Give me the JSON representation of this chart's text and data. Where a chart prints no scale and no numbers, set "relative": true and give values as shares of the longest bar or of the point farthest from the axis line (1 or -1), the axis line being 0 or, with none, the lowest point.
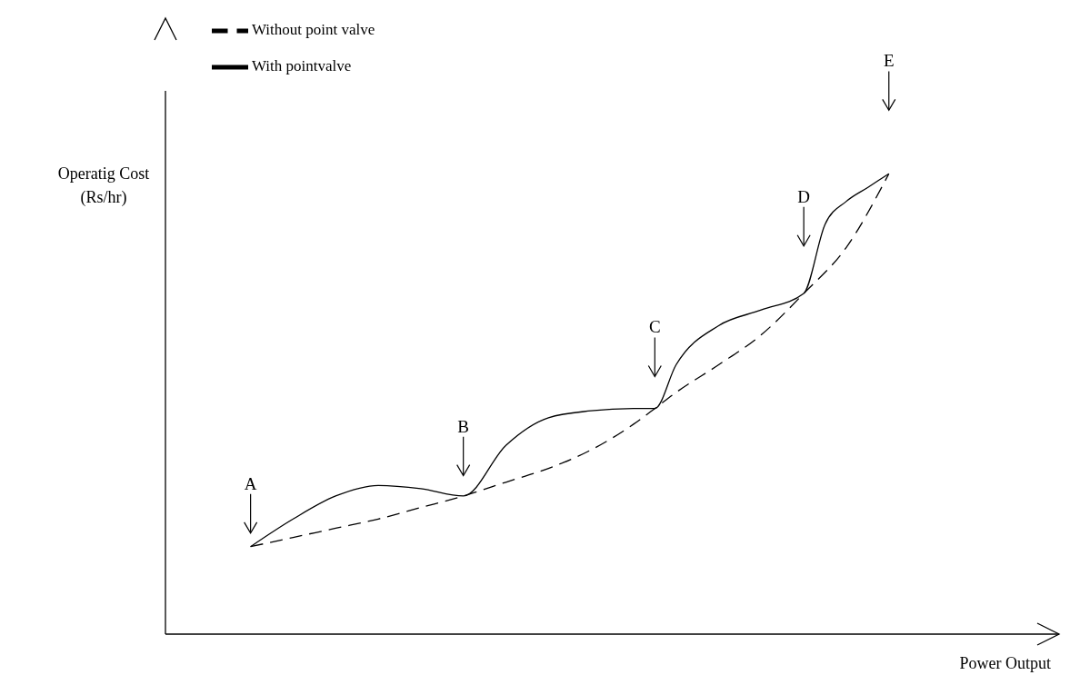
{
  "chart_data": {
    "type": "line",
    "relative": true,
    "xlabel": "Power Output",
    "ylabel": "Operatig Cost\n(Rs/hr)",
    "legend": "top left",
    "marker": "none",
    "grid": false,
    "categories": [
      null,
      null,
      null,
      null,
      null,
      null,
      null,
      null,
      null,
      null,
      null,
      null,
      null,
      null,
      null,
      null,
      null,
      null,
      null,
      null,
      null,
      null,
      null,
      null,
      null,
      null,
      null,
      null,
      null,
      null,
      null,
      null,
      null,
      null,
      null,
      null,
      null,
      null,
      null,
      null,
      null,
      null,
      null
    ],
    "series": [
      {
        "name": "Without point valve",
        "color": "#000000",
        "line_style": "dashed",
        "values": [
          null,
          null,
          null,
          null,
          0.19,
          null,
          0.21,
          null,
          0.23,
          null,
          0.25,
          null,
          0.275,
          null,
          0.3,
          null,
          0.33,
          null,
          0.36,
          null,
          0.4,
          null,
          0.456,
          0.49,
          0.525,
          null,
          0.585,
          null,
          0.65,
          null,
          0.74,
          null,
          0.84,
          null,
          1.0,
          null,
          null,
          null,
          null,
          null,
          null,
          null,
          null
        ]
      },
      {
        "name": "With pointvalve",
        "color": "#000000",
        "line_style": "solid",
        "values": [
          null,
          null,
          null,
          null,
          0.19,
          null,
          0.25,
          null,
          0.3,
          null,
          0.323,
          null,
          0.316,
          null,
          0.3,
          null,
          0.41,
          null,
          0.47,
          null,
          0.485,
          null,
          0.49,
          0.49,
          0.585,
          null,
          0.67,
          null,
          0.704,
          null,
          0.74,
          0.89,
          0.94,
          0.97,
          1.0,
          null,
          null,
          null,
          null,
          null,
          null,
          null,
          null
        ]
      }
    ],
    "annotations": [
      "A",
      "B",
      "C",
      "D",
      "E"
    ]
  }
}
